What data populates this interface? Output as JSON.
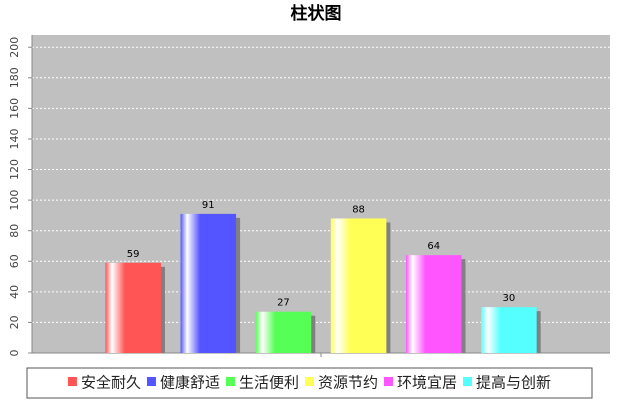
{
  "chart_data": {
    "type": "bar",
    "title": "柱状图",
    "categories": [
      null
    ],
    "series": [
      {
        "name": "安全耐久",
        "color": "#ff5555",
        "values": [
          59
        ]
      },
      {
        "name": "健康舒适",
        "color": "#5555ff",
        "values": [
          91
        ]
      },
      {
        "name": "生活便利",
        "color": "#55ff55",
        "values": [
          27
        ]
      },
      {
        "name": "资源节约",
        "color": "#ffff55",
        "values": [
          88
        ]
      },
      {
        "name": "环境宜居",
        "color": "#ff55ff",
        "values": [
          64
        ]
      },
      {
        "name": "提高与创新",
        "color": "#55ffff",
        "values": [
          30
        ]
      }
    ],
    "ylim": [
      0,
      208
    ],
    "yticks": [
      0,
      20,
      40,
      60,
      80,
      100,
      120,
      140,
      160,
      180,
      200
    ],
    "grid": true,
    "legend": "bottom"
  }
}
